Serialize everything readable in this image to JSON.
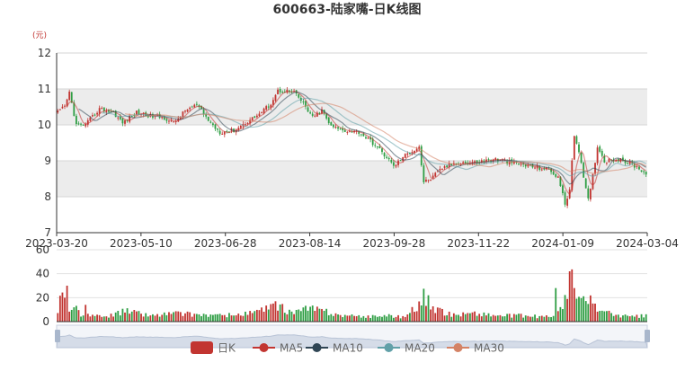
{
  "chart_data": {
    "type": "candlestick",
    "title": "600663-陆家嘴-日K线图",
    "unit_label": "(元)",
    "price_axis": {
      "ylim": [
        7,
        12
      ],
      "ticks": [
        7,
        8,
        9,
        10,
        11,
        12
      ]
    },
    "volume_axis": {
      "ylim": [
        0,
        60
      ],
      "ticks": [
        0,
        20,
        40,
        60
      ]
    },
    "x_tick_labels": [
      "2023-03-20",
      "2023-05-10",
      "2023-06-28",
      "2023-08-14",
      "2023-09-28",
      "2023-11-22",
      "2024-01-09",
      "2024-03-04"
    ],
    "colors": {
      "up": "#c23531",
      "down": "#2f9e44",
      "band": "#ececec",
      "ma5": "#c23531",
      "ma10": "#2f4554",
      "ma20": "#61a0a8",
      "ma30": "#d48265",
      "slider_fill": "#d5dce8",
      "slider_border": "#c8d0e0"
    },
    "legend": [
      "日K",
      "MA5",
      "MA10",
      "MA20",
      "MA30"
    ],
    "price_anchors": [
      [
        0,
        10.35
      ],
      [
        3,
        10.5
      ],
      [
        5,
        10.9
      ],
      [
        8,
        10.0
      ],
      [
        12,
        10.0
      ],
      [
        18,
        10.45
      ],
      [
        24,
        10.35
      ],
      [
        28,
        10.05
      ],
      [
        34,
        10.35
      ],
      [
        40,
        10.25
      ],
      [
        46,
        10.2
      ],
      [
        50,
        10.05
      ],
      [
        56,
        10.45
      ],
      [
        60,
        10.55
      ],
      [
        66,
        10.05
      ],
      [
        70,
        9.8
      ],
      [
        76,
        9.85
      ],
      [
        82,
        10.1
      ],
      [
        88,
        10.35
      ],
      [
        92,
        10.6
      ],
      [
        95,
        10.95
      ],
      [
        98,
        10.95
      ],
      [
        102,
        10.9
      ],
      [
        106,
        10.6
      ],
      [
        110,
        10.2
      ],
      [
        114,
        10.4
      ],
      [
        118,
        9.95
      ],
      [
        124,
        9.85
      ],
      [
        130,
        9.8
      ],
      [
        136,
        9.5
      ],
      [
        142,
        9.1
      ],
      [
        145,
        8.85
      ],
      [
        150,
        9.15
      ],
      [
        156,
        9.4
      ],
      [
        158,
        8.4
      ],
      [
        162,
        8.55
      ],
      [
        166,
        8.8
      ],
      [
        172,
        8.95
      ],
      [
        180,
        8.95
      ],
      [
        188,
        9.05
      ],
      [
        196,
        8.95
      ],
      [
        204,
        8.85
      ],
      [
        212,
        8.75
      ],
      [
        216,
        8.55
      ],
      [
        219,
        7.8
      ],
      [
        221,
        8.2
      ],
      [
        223,
        9.7
      ],
      [
        225,
        9.3
      ],
      [
        227,
        8.5
      ],
      [
        229,
        7.9
      ],
      [
        231,
        8.6
      ],
      [
        233,
        9.4
      ],
      [
        236,
        9.0
      ],
      [
        240,
        9.05
      ],
      [
        244,
        9.0
      ],
      [
        248,
        8.9
      ],
      [
        252,
        8.75
      ],
      [
        254,
        8.65
      ]
    ],
    "volume_anchors": [
      [
        0,
        10
      ],
      [
        2,
        28
      ],
      [
        3,
        18
      ],
      [
        5,
        7
      ],
      [
        8,
        12
      ],
      [
        10,
        6
      ],
      [
        14,
        5
      ],
      [
        20,
        4
      ],
      [
        30,
        9
      ],
      [
        40,
        5
      ],
      [
        50,
        7
      ],
      [
        60,
        6
      ],
      [
        70,
        5
      ],
      [
        80,
        6
      ],
      [
        90,
        10
      ],
      [
        95,
        13
      ],
      [
        100,
        8
      ],
      [
        110,
        11
      ],
      [
        120,
        6
      ],
      [
        130,
        4
      ],
      [
        140,
        5
      ],
      [
        150,
        4
      ],
      [
        156,
        15
      ],
      [
        158,
        22
      ],
      [
        160,
        12
      ],
      [
        164,
        9
      ],
      [
        170,
        6
      ],
      [
        180,
        7
      ],
      [
        190,
        5
      ],
      [
        200,
        5
      ],
      [
        210,
        4
      ],
      [
        214,
        5
      ],
      [
        218,
        12
      ],
      [
        220,
        22
      ],
      [
        222,
        36
      ],
      [
        224,
        22
      ],
      [
        226,
        18
      ],
      [
        228,
        16
      ],
      [
        230,
        20
      ],
      [
        232,
        13
      ],
      [
        236,
        8
      ],
      [
        240,
        6
      ],
      [
        244,
        5
      ],
      [
        248,
        4
      ],
      [
        254,
        5
      ]
    ],
    "volume_spikes": [
      [
        4,
        30
      ],
      [
        12,
        14
      ],
      [
        94,
        17
      ],
      [
        160,
        22
      ],
      [
        215,
        28
      ],
      [
        221,
        42
      ]
    ],
    "bar_count": 255
  }
}
